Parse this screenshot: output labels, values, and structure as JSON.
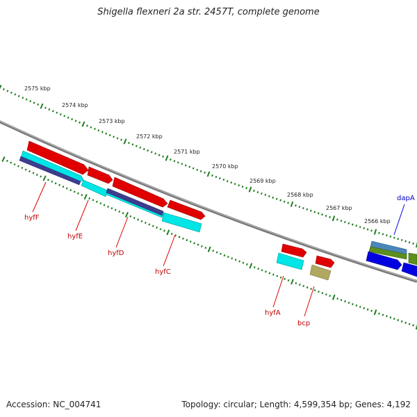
{
  "title": "Shigella flexneri 2a str. 2457T, complete genome",
  "footer": {
    "accession": "Accession: NC_004741",
    "summary": "Topology: circular; Length: 4,599,354 bp; Genes: 4,192"
  },
  "colors": {
    "backbone": "#7f7f7f",
    "tick": "#1e7d1e",
    "forward_gene": "#e00000",
    "reverse_gene": "#00e5e5",
    "cds_feature": "#3d3d8f",
    "label_red": "#c00000",
    "label_blue": "#0000c0",
    "bcp_feature": "#b0a860",
    "dap_feature_a": "#4a86b8",
    "dap_feature_b": "#5c8f1e",
    "dap_feature_c": "#0000e0"
  },
  "ticks": {
    "unit": "kbp",
    "labels": [
      "2575 kbp",
      "2574 kbp",
      "2573 kbp",
      "2572 kbp",
      "2571 kbp",
      "2570 kbp",
      "2569 kbp",
      "2568 kbp",
      "2567 kbp",
      "2566 kbp"
    ]
  },
  "genes": [
    {
      "name": "hyfF",
      "strand": "reverse",
      "label_color": "red"
    },
    {
      "name": "hyfE",
      "strand": "reverse",
      "label_color": "red"
    },
    {
      "name": "hyfD",
      "strand": "reverse",
      "label_color": "red"
    },
    {
      "name": "hyfC",
      "strand": "reverse",
      "label_color": "red"
    },
    {
      "name": "hyfA",
      "strand": "reverse",
      "label_color": "red"
    },
    {
      "name": "bcp",
      "strand": "reverse",
      "label_color": "red"
    },
    {
      "name": "dapA",
      "strand": "forward",
      "label_color": "blue"
    }
  ]
}
